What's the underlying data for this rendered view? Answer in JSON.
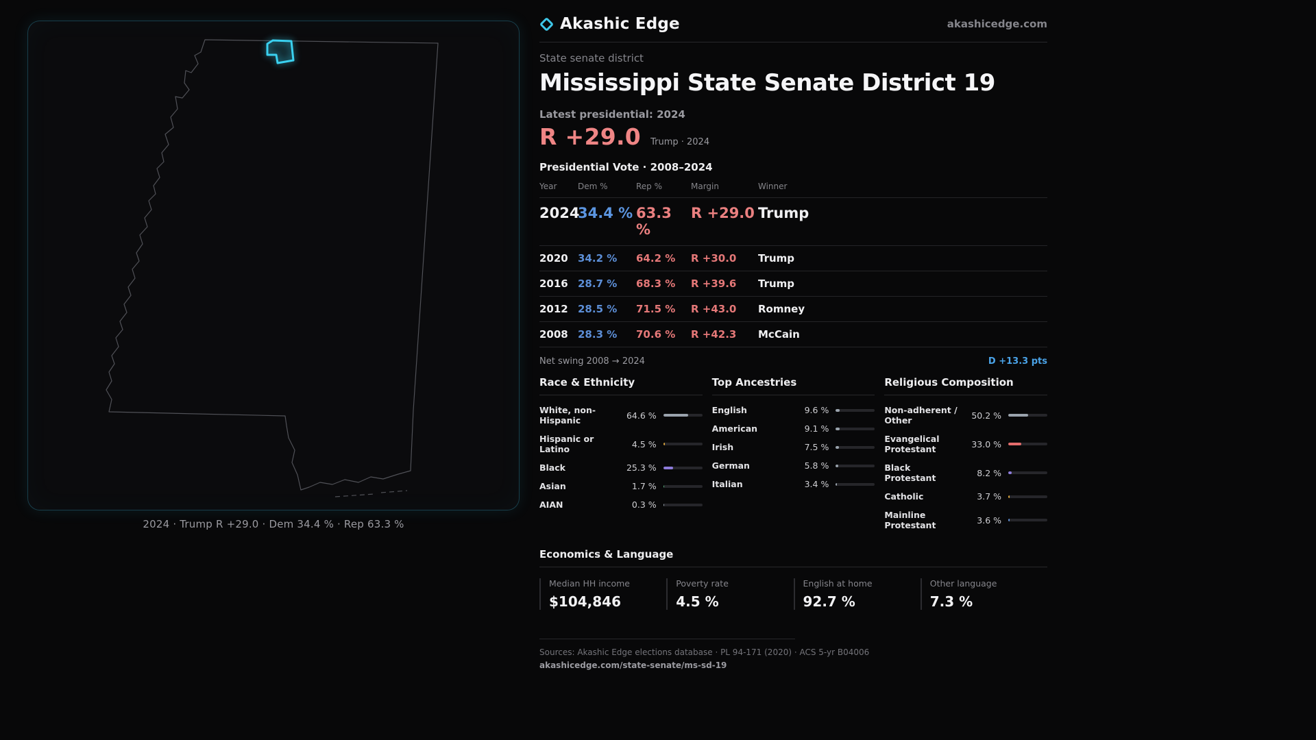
{
  "brand": {
    "name": "Akashic Edge",
    "site": "akashicedge.com"
  },
  "map": {
    "caption": "2024 · Trump R +29.0 · Dem 34.4 % · Rep 63.3 %"
  },
  "header": {
    "kicker": "State senate district",
    "title": "Mississippi State Senate District 19",
    "latest_label": "Latest presidential: 2024",
    "margin_big": "R +29.0",
    "margin_note": "Trump · 2024"
  },
  "vote_table": {
    "title": "Presidential Vote · 2008–2024",
    "columns": [
      "Year",
      "Dem %",
      "Rep %",
      "Margin",
      "Winner"
    ],
    "rows": [
      {
        "year": "2024",
        "dem": "34.4 %",
        "rep": "63.3 %",
        "margin": "R +29.0",
        "winner": "Trump"
      },
      {
        "year": "2020",
        "dem": "34.2 %",
        "rep": "64.2 %",
        "margin": "R +30.0",
        "winner": "Trump"
      },
      {
        "year": "2016",
        "dem": "28.7 %",
        "rep": "68.3 %",
        "margin": "R +39.6",
        "winner": "Trump"
      },
      {
        "year": "2012",
        "dem": "28.5 %",
        "rep": "71.5 %",
        "margin": "R +43.0",
        "winner": "Romney"
      },
      {
        "year": "2008",
        "dem": "28.3 %",
        "rep": "70.6 %",
        "margin": "R +42.3",
        "winner": "McCain"
      }
    ],
    "net_swing_label": "Net swing 2008 → 2024",
    "net_swing_value": "D +13.3 pts"
  },
  "race": {
    "title": "Race & Ethnicity",
    "rows": [
      {
        "label": "White, non-Hispanic",
        "value": "64.6 %",
        "pct": 64.6,
        "color": "#9aa3ad"
      },
      {
        "label": "Hispanic or Latino",
        "value": "4.5 %",
        "pct": 4.5,
        "color": "#d9a43a"
      },
      {
        "label": "Black",
        "value": "25.3 %",
        "pct": 25.3,
        "color": "#8d7bdb"
      },
      {
        "label": "Asian",
        "value": "1.7 %",
        "pct": 1.7,
        "color": "#53b078"
      },
      {
        "label": "AIAN",
        "value": "0.3 %",
        "pct": 0.3,
        "color": "#9aa3ad"
      }
    ]
  },
  "ancestries": {
    "title": "Top Ancestries",
    "rows": [
      {
        "label": "English",
        "value": "9.6 %",
        "pct": 9.6,
        "color": "#9aa3ad"
      },
      {
        "label": "American",
        "value": "9.1 %",
        "pct": 9.1,
        "color": "#9aa3ad"
      },
      {
        "label": "Irish",
        "value": "7.5 %",
        "pct": 7.5,
        "color": "#9aa3ad"
      },
      {
        "label": "German",
        "value": "5.8 %",
        "pct": 5.8,
        "color": "#9aa3ad"
      },
      {
        "label": "Italian",
        "value": "3.4 %",
        "pct": 3.4,
        "color": "#9aa3ad"
      }
    ]
  },
  "religion": {
    "title": "Religious Composition",
    "rows": [
      {
        "label": "Non-adherent / Other",
        "value": "50.2 %",
        "pct": 50.2,
        "color": "#9aa3ad"
      },
      {
        "label": "Evangelical Protestant",
        "value": "33.0 %",
        "pct": 33.0,
        "color": "#e36c6c"
      },
      {
        "label": "Black Protestant",
        "value": "8.2 %",
        "pct": 8.2,
        "color": "#8d7bdb"
      },
      {
        "label": "Catholic",
        "value": "3.7 %",
        "pct": 3.7,
        "color": "#d9a43a"
      },
      {
        "label": "Mainline Protestant",
        "value": "3.6 %",
        "pct": 3.6,
        "color": "#5f8fd6"
      }
    ]
  },
  "economics": {
    "title": "Economics & Language",
    "stats": [
      {
        "label": "Median HH income",
        "value": "$104,846"
      },
      {
        "label": "Poverty rate",
        "value": "4.5 %"
      },
      {
        "label": "English at home",
        "value": "92.7 %"
      },
      {
        "label": "Other language",
        "value": "7.3 %"
      }
    ]
  },
  "footer": {
    "sources": "Sources: Akashic Edge elections database · PL 94-171 (2020) · ACS 5-yr B04006",
    "permalink": "akashicedge.com/state-senate/ms-sd-19"
  },
  "colors": {
    "accent": "#3ec6e8",
    "rep": "#ef8585",
    "dem": "#5c8ed6",
    "swing": "#4aa3e8"
  }
}
